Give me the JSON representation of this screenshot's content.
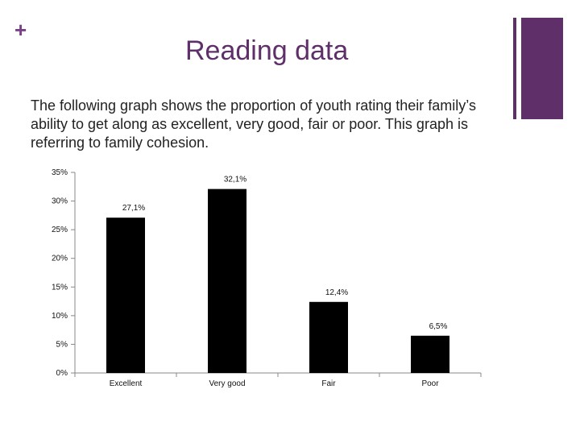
{
  "slide": {
    "bullet_symbol": "+",
    "title": "Reading data",
    "description": "The following graph shows the proportion of youth rating their family’s ability to get along as excellent, very good, fair or poor. This graph is referring to family cohesion.",
    "accent_color": "#5f2f69"
  },
  "chart_data": {
    "type": "bar",
    "categories": [
      "Excellent",
      "Very good",
      "Fair",
      "Poor"
    ],
    "values": [
      27.1,
      32.1,
      12.4,
      6.5
    ],
    "data_labels": [
      "27,1%",
      "32,1%",
      "12,4%",
      "6,5%"
    ],
    "y_ticks": [
      0,
      5,
      10,
      15,
      20,
      25,
      30,
      35
    ],
    "y_tick_labels": [
      "0%",
      "5%",
      "10%",
      "15%",
      "20%",
      "25%",
      "30%",
      "35%"
    ],
    "ylim": [
      0,
      35
    ],
    "title": "",
    "xlabel": "",
    "ylabel": "",
    "grid": false,
    "bar_color": "#000000"
  }
}
